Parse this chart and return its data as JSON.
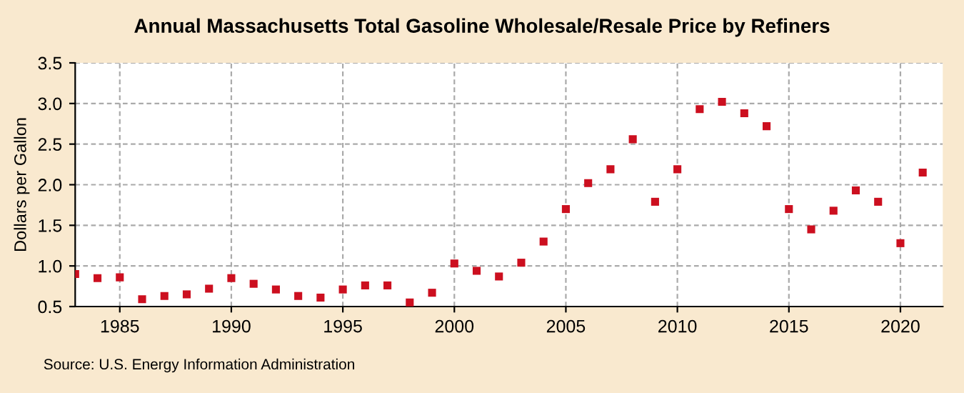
{
  "chart_data": {
    "type": "scatter",
    "title": "Annual Massachusetts Total Gasoline Wholesale/Resale Price by Refiners",
    "ylabel": "Dollars per Gallon",
    "x": [
      1983,
      1984,
      1985,
      1986,
      1987,
      1988,
      1989,
      1990,
      1991,
      1992,
      1993,
      1994,
      1995,
      1996,
      1997,
      1998,
      1999,
      2000,
      2001,
      2002,
      2003,
      2004,
      2005,
      2006,
      2007,
      2008,
      2009,
      2010,
      2011,
      2012,
      2013,
      2014,
      2015,
      2016,
      2017,
      2018,
      2019,
      2020,
      2021
    ],
    "series": [
      {
        "color": "#cc0f1f",
        "values": [
          0.9,
          0.85,
          0.86,
          0.59,
          0.63,
          0.65,
          0.72,
          0.85,
          0.78,
          0.71,
          0.63,
          0.61,
          0.71,
          0.76,
          0.76,
          0.55,
          0.67,
          1.03,
          0.94,
          0.87,
          1.04,
          1.3,
          1.7,
          2.02,
          2.19,
          2.56,
          1.79,
          2.19,
          2.93,
          3.02,
          2.88,
          2.72,
          1.7,
          1.45,
          1.68,
          1.93,
          1.79,
          1.28,
          2.15
        ]
      }
    ],
    "xlim": [
      1983,
      2021.9
    ],
    "xticks": [
      1985,
      1990,
      1995,
      2000,
      2005,
      2010,
      2015,
      2020
    ],
    "ylim": [
      0.5,
      3.5
    ],
    "yticks": [
      {
        "value": 0.5,
        "label": "0.5"
      },
      {
        "value": 1,
        "label": "1.0"
      },
      {
        "value": 1.5,
        "label": "1.5"
      },
      {
        "value": 2,
        "label": "2.0"
      },
      {
        "value": 2.5,
        "label": "2.5"
      },
      {
        "value": 3,
        "label": "3.0"
      },
      {
        "value": 3.5,
        "label": "3.5"
      }
    ],
    "grid": true,
    "marker": "square",
    "annotations": [
      "Source: U.S. Energy Information Administration"
    ]
  }
}
